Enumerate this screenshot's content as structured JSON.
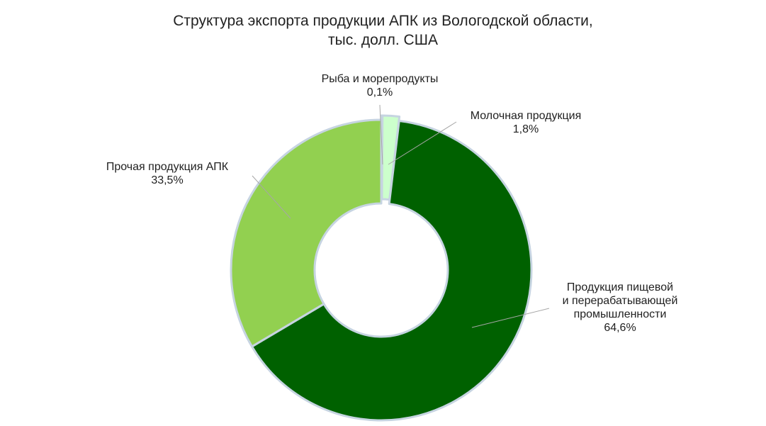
{
  "chart_data": {
    "type": "pie",
    "subtype": "donut",
    "title": [
      "Структура экспорта продукции АПК из Вологодской области,",
      "тыс. долл. США"
    ],
    "legend": "none",
    "slices": [
      {
        "label": [
          "Рыба и морепродукты"
        ],
        "value": 0.1,
        "value_label": "0,1%",
        "color": "#ffffff"
      },
      {
        "label": [
          "Молочная продукция"
        ],
        "value": 1.8,
        "value_label": "1,8%",
        "color": "#ccffcc"
      },
      {
        "label": [
          "Продукция пищевой",
          "и перерабатывающей",
          "промышленности"
        ],
        "value": 64.6,
        "value_label": "64,6%",
        "color": "#006100"
      },
      {
        "label": [
          "Прочая продукция АПК"
        ],
        "value": 33.5,
        "value_label": "33,5%",
        "color": "#92d050"
      }
    ],
    "border_color": "#c6d4e1",
    "leader_color": "#a6a6a6"
  }
}
